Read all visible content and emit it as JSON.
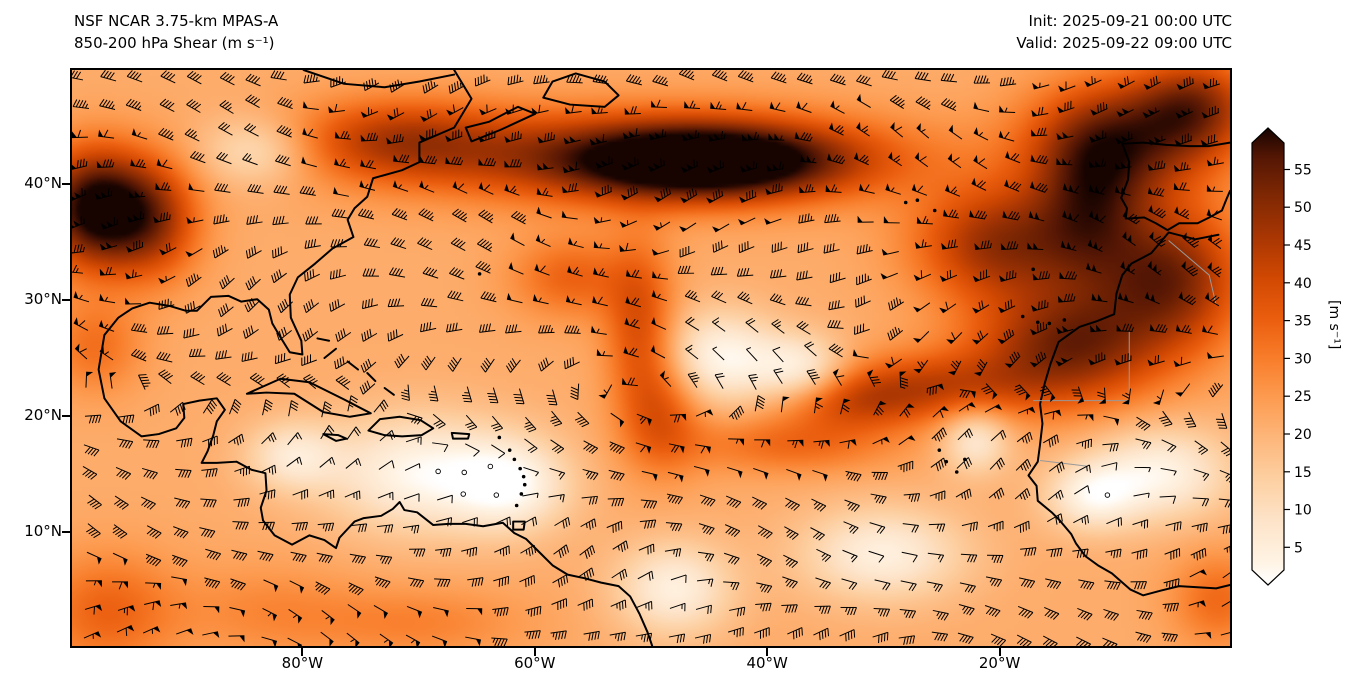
{
  "header": {
    "model_line": "NSF NCAR 3.75-km MPAS-A",
    "field_line": "850-200 hPa Shear (m s⁻¹)",
    "init_label": "Init: 2025-09-21 00:00 UTC",
    "valid_label": "Valid: 2025-09-22 09:00 UTC"
  },
  "map": {
    "y_ticks": [
      "40°N",
      "30°N",
      "20°N",
      "10°N"
    ],
    "x_ticks": [
      "80°W",
      "60°W",
      "40°W",
      "20°W"
    ]
  },
  "colorbar": {
    "unit_label": "[m s⁻¹]",
    "ticks": [
      {
        "value": 55,
        "label": "55"
      },
      {
        "value": 50,
        "label": "50"
      },
      {
        "value": 45,
        "label": "45"
      },
      {
        "value": 40,
        "label": "40"
      },
      {
        "value": 35,
        "label": "35"
      },
      {
        "value": 30,
        "label": "30"
      },
      {
        "value": 25,
        "label": "25"
      },
      {
        "value": 20,
        "label": "20"
      },
      {
        "value": 15,
        "label": "15"
      },
      {
        "value": 10,
        "label": "10"
      },
      {
        "value": 5,
        "label": "5"
      }
    ],
    "stops": [
      [
        2,
        "#ffffff"
      ],
      [
        5,
        "#fff3e3"
      ],
      [
        10,
        "#fde3c8"
      ],
      [
        15,
        "#fdd0a2"
      ],
      [
        20,
        "#fdb77c"
      ],
      [
        25,
        "#fd9c51"
      ],
      [
        30,
        "#f87d2a"
      ],
      [
        35,
        "#ea5d0e"
      ],
      [
        40,
        "#d04802"
      ],
      [
        45,
        "#a93603"
      ],
      [
        50,
        "#802803"
      ],
      [
        55,
        "#531604"
      ],
      [
        60,
        "#170401"
      ]
    ]
  },
  "chart_data": {
    "type": "heatmap",
    "title": "850-200 hPa Shear (m s⁻¹)",
    "model": "NSF NCAR 3.75-km MPAS-A",
    "init_time": "2025-09-21 00:00 UTC",
    "valid_time": "2025-09-22 09:00 UTC",
    "units": "m s⁻¹",
    "lon_range": [
      -100,
      0
    ],
    "lat_range": [
      0,
      50
    ],
    "lon_tick_labels": [
      "80°W",
      "60°W",
      "40°W",
      "20°W"
    ],
    "lat_tick_labels": [
      "40°N",
      "30°N",
      "20°N",
      "10°N"
    ],
    "colorbar_ticks": [
      5,
      10,
      15,
      20,
      25,
      30,
      35,
      40,
      45,
      50,
      55
    ],
    "value_range_shown": [
      5,
      55
    ],
    "base_value": 22,
    "overlay": "wind shear barbs; circle markers where shear is below ~5 m s⁻¹",
    "features": [
      {
        "lon": -98,
        "lat": 38,
        "rlon": 4.5,
        "rlat": 5,
        "value": 62
      },
      {
        "lon": -93,
        "lat": 37,
        "rlon": 4,
        "rlat": 5,
        "value": 44
      },
      {
        "lon": -50,
        "lat": 42.5,
        "rlon": 20,
        "rlat": 4,
        "value": 48
      },
      {
        "lon": -45,
        "lat": 42,
        "rlon": 11,
        "rlat": 3,
        "value": 58
      },
      {
        "lon": -72,
        "lat": 44,
        "rlon": 9,
        "rlat": 3.5,
        "value": 40
      },
      {
        "lon": -20,
        "lat": 35,
        "rlon": 7,
        "rlat": 5,
        "value": 47
      },
      {
        "lon": -9,
        "lat": 44,
        "rlon": 8,
        "rlat": 5,
        "value": 48
      },
      {
        "lon": -3,
        "lat": 47,
        "rlon": 5,
        "rlat": 4,
        "value": 44
      },
      {
        "lon": -12,
        "lat": 38,
        "rlon": 5,
        "rlat": 7,
        "value": 46
      },
      {
        "lon": -5,
        "lat": 32,
        "rlon": 6,
        "rlat": 6,
        "value": 50
      },
      {
        "lon": -14,
        "lat": 26,
        "rlon": 8,
        "rlat": 5,
        "value": 50
      },
      {
        "lon": -26,
        "lat": 22.5,
        "rlon": 9,
        "rlat": 3,
        "value": 40
      },
      {
        "lon": -33,
        "lat": 21,
        "rlon": 6,
        "rlat": 2.5,
        "value": 34
      },
      {
        "lon": -51,
        "lat": 28,
        "rlon": 3,
        "rlat": 7,
        "value": 38
      },
      {
        "lon": -49,
        "lat": 20,
        "rlon": 3.5,
        "rlat": 5,
        "value": 36
      },
      {
        "lon": -38,
        "lat": 17.5,
        "rlon": 9,
        "rlat": 2.5,
        "value": 33
      },
      {
        "lon": -57,
        "lat": 32,
        "rlon": 5,
        "rlat": 3.5,
        "value": 34
      },
      {
        "lon": -98,
        "lat": 26,
        "rlon": 4,
        "rlat": 4,
        "value": 32
      },
      {
        "lon": -97,
        "lat": 3,
        "rlon": 6,
        "rlat": 5,
        "value": 34
      },
      {
        "lon": -83,
        "lat": 3,
        "rlon": 8,
        "rlat": 4,
        "value": 28
      },
      {
        "lon": -70,
        "lat": 2,
        "rlon": 9,
        "rlat": 3,
        "value": 29
      },
      {
        "lon": -1,
        "lat": 4,
        "rlon": 4,
        "rlat": 4,
        "value": 33
      },
      {
        "lon": -84,
        "lat": 43,
        "rlon": 5,
        "rlat": 3,
        "value": 10
      },
      {
        "lon": -70,
        "lat": 15,
        "rlon": 8,
        "rlat": 5,
        "value": 4
      },
      {
        "lon": -62,
        "lat": 14,
        "rlon": 5,
        "rlat": 4,
        "value": 6
      },
      {
        "lon": -81,
        "lat": 16.5,
        "rlon": 4,
        "rlat": 3,
        "value": 9
      },
      {
        "lon": -44,
        "lat": 25,
        "rlon": 5,
        "rlat": 4,
        "value": 4
      },
      {
        "lon": -37,
        "lat": 24,
        "rlon": 4,
        "rlat": 3,
        "value": 6
      },
      {
        "lon": -22,
        "lat": 18,
        "rlon": 3,
        "rlat": 3,
        "value": 7
      },
      {
        "lon": -6,
        "lat": 15,
        "rlon": 6,
        "rlat": 4,
        "value": 5
      },
      {
        "lon": -12,
        "lat": 13,
        "rlon": 4,
        "rlat": 3,
        "value": 7
      },
      {
        "lon": -48,
        "lat": 5,
        "rlon": 5,
        "rlat": 4,
        "value": 6
      },
      {
        "lon": -30,
        "lat": 8,
        "rlon": 7,
        "rlat": 4,
        "value": 6
      }
    ]
  }
}
